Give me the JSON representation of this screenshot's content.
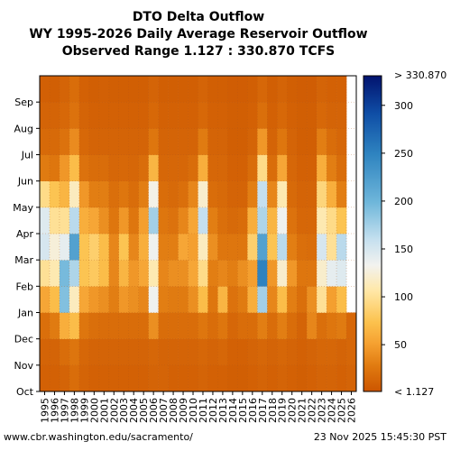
{
  "chart_data": {
    "type": "heatmap",
    "title": "DTO Delta Outflow",
    "subtitle": "WY 1995-2026 Daily Average Reservoir Outflow",
    "range_text": "Observed Range 1.127 : 330.870 TCFS",
    "x": [
      "1995",
      "1996",
      "1997",
      "1998",
      "1999",
      "2000",
      "2001",
      "2002",
      "2003",
      "2004",
      "2005",
      "2006",
      "2007",
      "2008",
      "2009",
      "2010",
      "2011",
      "2012",
      "2013",
      "2014",
      "2015",
      "2016",
      "2017",
      "2018",
      "2019",
      "2020",
      "2021",
      "2022",
      "2023",
      "2024",
      "2025",
      "2026"
    ],
    "y": [
      "Oct",
      "Nov",
      "Dec",
      "Jan",
      "Feb",
      "Mar",
      "Apr",
      "May",
      "Jun",
      "Jul",
      "Aug",
      "Sep"
    ],
    "colorbar": {
      "min": 1.127,
      "max": 330.87,
      "ticks": [
        50,
        100,
        150,
        200,
        250,
        300
      ],
      "top_label": "> 330.870",
      "bottom_label": "< 1.127"
    },
    "monthly_means_tcfs": [
      [
        10,
        12,
        20,
        55,
        100,
        150,
        145,
        95,
        28,
        16,
        12,
        9
      ],
      [
        10,
        12,
        28,
        70,
        110,
        125,
        100,
        75,
        25,
        16,
        12,
        8
      ],
      [
        12,
        18,
        60,
        190,
        195,
        140,
        100,
        65,
        45,
        22,
        15,
        12
      ],
      [
        18,
        24,
        70,
        115,
        170,
        220,
        165,
        115,
        70,
        38,
        22,
        18
      ],
      [
        12,
        14,
        25,
        55,
        75,
        75,
        60,
        45,
        22,
        15,
        12,
        10
      ],
      [
        10,
        12,
        20,
        45,
        80,
        85,
        55,
        30,
        18,
        12,
        10,
        8
      ],
      [
        10,
        12,
        18,
        40,
        70,
        70,
        40,
        30,
        18,
        12,
        10,
        9
      ],
      [
        10,
        12,
        18,
        30,
        35,
        35,
        25,
        20,
        14,
        12,
        10,
        8
      ],
      [
        10,
        12,
        18,
        45,
        65,
        75,
        45,
        25,
        15,
        12,
        10,
        8
      ],
      [
        10,
        12,
        18,
        40,
        45,
        35,
        25,
        18,
        14,
        12,
        10,
        8
      ],
      [
        10,
        12,
        18,
        35,
        55,
        60,
        50,
        30,
        18,
        12,
        10,
        8
      ],
      [
        12,
        14,
        40,
        135,
        110,
        135,
        175,
        130,
        65,
        25,
        15,
        12
      ],
      [
        12,
        12,
        18,
        30,
        35,
        30,
        25,
        18,
        14,
        12,
        10,
        8
      ],
      [
        10,
        12,
        18,
        28,
        40,
        30,
        22,
        16,
        14,
        12,
        10,
        8
      ],
      [
        10,
        12,
        18,
        28,
        40,
        55,
        35,
        20,
        14,
        12,
        10,
        8
      ],
      [
        10,
        12,
        18,
        40,
        55,
        50,
        55,
        35,
        18,
        12,
        10,
        8
      ],
      [
        12,
        14,
        25,
        70,
        95,
        115,
        160,
        120,
        60,
        28,
        15,
        12
      ],
      [
        10,
        12,
        18,
        25,
        30,
        40,
        30,
        18,
        14,
        12,
        10,
        8
      ],
      [
        10,
        14,
        25,
        65,
        35,
        25,
        20,
        16,
        14,
        12,
        10,
        8
      ],
      [
        8,
        10,
        14,
        22,
        30,
        25,
        16,
        12,
        10,
        8,
        8,
        7
      ],
      [
        8,
        10,
        18,
        28,
        40,
        25,
        18,
        12,
        10,
        8,
        8,
        7
      ],
      [
        10,
        12,
        18,
        60,
        50,
        85,
        60,
        30,
        18,
        12,
        10,
        8
      ],
      [
        12,
        14,
        30,
        175,
        250,
        220,
        170,
        160,
        95,
        45,
        20,
        14
      ],
      [
        10,
        12,
        18,
        35,
        45,
        75,
        65,
        35,
        18,
        12,
        10,
        8
      ],
      [
        12,
        14,
        30,
        70,
        120,
        165,
        135,
        110,
        55,
        25,
        15,
        12
      ],
      [
        10,
        12,
        18,
        30,
        45,
        30,
        22,
        16,
        14,
        12,
        10,
        8
      ],
      [
        8,
        10,
        12,
        20,
        25,
        20,
        14,
        12,
        10,
        8,
        8,
        7
      ],
      [
        10,
        12,
        35,
        40,
        25,
        18,
        14,
        12,
        10,
        8,
        8,
        7
      ],
      [
        12,
        14,
        20,
        100,
        120,
        150,
        110,
        90,
        60,
        30,
        15,
        12
      ],
      [
        12,
        14,
        25,
        50,
        140,
        100,
        95,
        60,
        30,
        18,
        12,
        10
      ],
      [
        10,
        12,
        28,
        70,
        145,
        165,
        75,
        30,
        18,
        14,
        12,
        10
      ],
      [
        12,
        14,
        14,
        null,
        null,
        null,
        null,
        null,
        null,
        null,
        null,
        null
      ]
    ]
  },
  "footer": {
    "left": "www.cbr.washington.edu/sacramento/",
    "right": "23 Nov 2025 15:45:30 PST"
  }
}
